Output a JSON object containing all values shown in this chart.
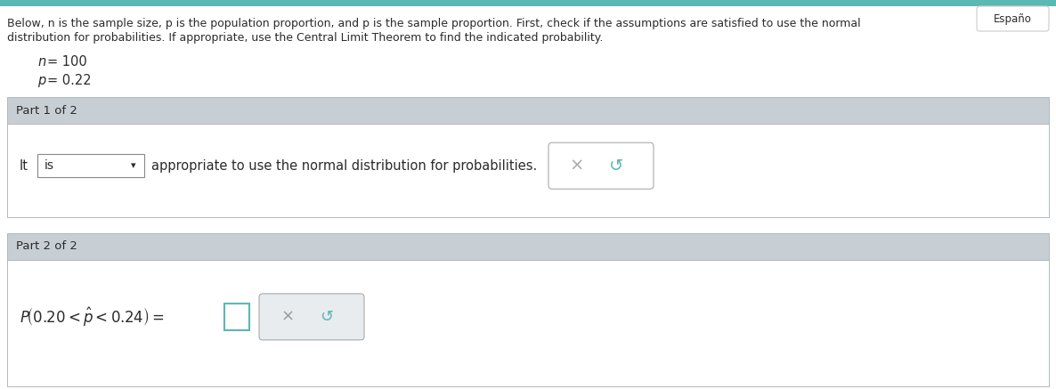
{
  "bg_color": "#ffffff",
  "teal_color": "#5bb8b2",
  "section_header_color": "#c8cfd4",
  "section_body_color": "#ffffff",
  "text_color": "#2b2b2b",
  "border_color": "#adb5bd",
  "dropdown_border": "#888888",
  "espanol_label": "Españo",
  "body_line1": "Below, n is the sample size, p is the population proportion, and p is the sample proportion. First, check if the assumptions are satisfied to use the normal",
  "body_line2": "distribution for probabilities. If appropriate, use the Central Limit Theorem to find the indicated probability.",
  "n_text": "= 100",
  "p_text": "= 0.22",
  "part1_label": "Part 1 of 2",
  "part2_label": "Part 2 of 2",
  "it_text": "It",
  "dropdown_text": "is",
  "after_dropdown": "appropriate to use the normal distribution for probabilities.",
  "x_btn_color": "#aaaaaa",
  "redo_color": "#5bb8b2",
  "ans_border_color": "#5bb8b2",
  "xbtn_box_bg": "#e8ecef"
}
